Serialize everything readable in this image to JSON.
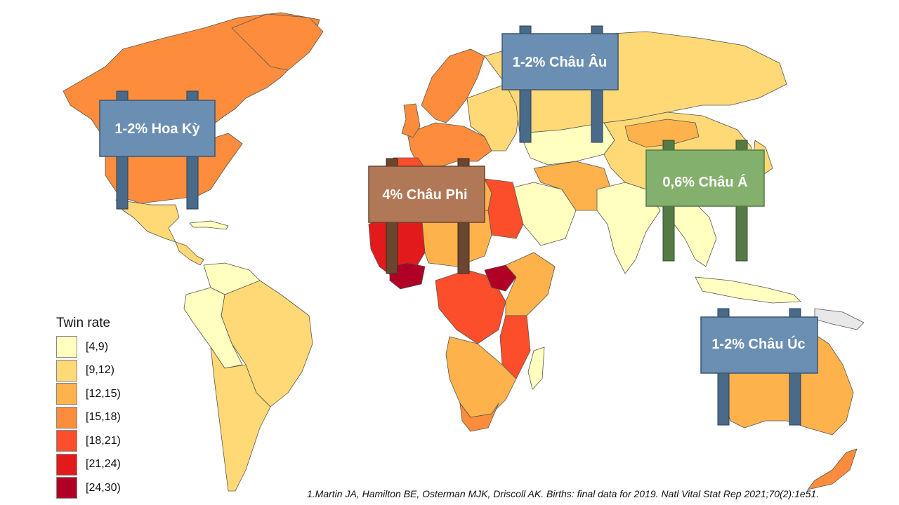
{
  "legend": {
    "title": "Twin rate",
    "items": [
      {
        "label": "[4,9)",
        "color": "#ffffbf"
      },
      {
        "label": "[9,12)",
        "color": "#fed976"
      },
      {
        "label": "[12,15)",
        "color": "#feb24c"
      },
      {
        "label": "[15,18)",
        "color": "#fd8d3c"
      },
      {
        "label": "[18,21)",
        "color": "#fc4e2a"
      },
      {
        "label": "[21,24)",
        "color": "#e31a1c"
      },
      {
        "label": "[24,30)",
        "color": "#b10026"
      }
    ]
  },
  "signs": {
    "north_america": {
      "text": "1-2%  Hoa Kỳ",
      "color": "#6b8fb3"
    },
    "europe": {
      "text": "1-2%  Châu Âu",
      "color": "#6b8fb3"
    },
    "africa": {
      "text": "4%  Châu Phi",
      "color": "#b07856"
    },
    "asia": {
      "text": "0,6%  Châu Á",
      "color": "#84b06e"
    },
    "oceania": {
      "text": "1-2%  Châu Úc",
      "color": "#6b8fb3"
    }
  },
  "citation": "1.Martin JA, Hamilton BE, Osterman MJK, Driscoll AK. Births: final data for 2019. Natl Vital Stat Rep 2021;70(2):1e51."
}
